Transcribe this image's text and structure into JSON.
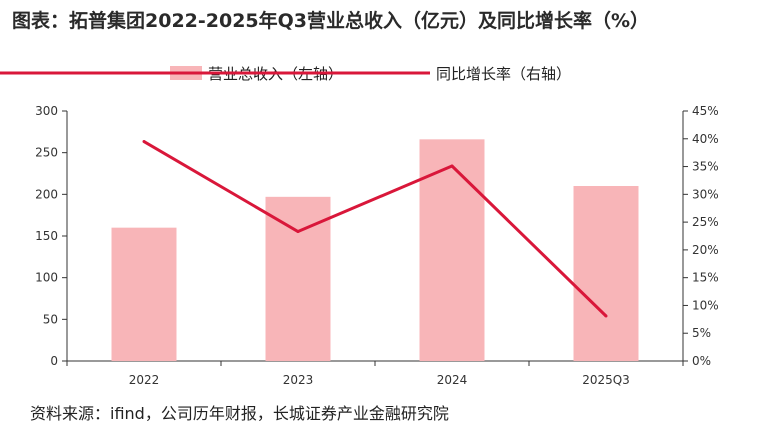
{
  "title": "图表：拓普集团2022-2025年Q3营业总收入（亿元）及同比增长率（%）",
  "source": "资料来源：ifind，公司历年财报，长城证券产业金融研究院",
  "colors": {
    "bar": "#f8b5b8",
    "line": "#d9173a",
    "axis": "#333333"
  },
  "chart_data": {
    "type": "bar",
    "categories": [
      "2022",
      "2023",
      "2024",
      "2025Q3"
    ],
    "series": [
      {
        "name": "营业总收入（左轴）",
        "type": "bar",
        "axis": "left",
        "values": [
          160,
          197,
          266,
          210
        ]
      },
      {
        "name": "同比增长率（右轴）",
        "type": "line",
        "axis": "right",
        "values": [
          39.5,
          23.3,
          35.1,
          8.1
        ]
      }
    ],
    "y_left": {
      "lim": [
        0,
        300
      ],
      "ticks": [
        "0",
        "50",
        "100",
        "150",
        "200",
        "250",
        "300"
      ]
    },
    "y_right": {
      "lim": [
        0,
        45
      ],
      "ticks": [
        "0%",
        "5%",
        "10%",
        "15%",
        "20%",
        "25%",
        "30%",
        "35%",
        "40%",
        "45%"
      ]
    },
    "grid": false,
    "legend": "top-center"
  }
}
